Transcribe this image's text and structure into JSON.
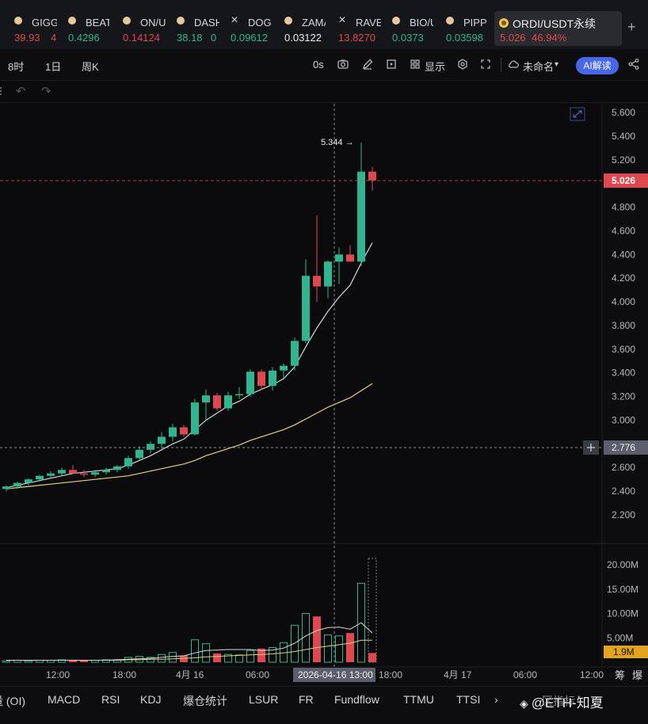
{
  "ticker": [
    {
      "sym": "GIGG",
      "price": "39.93",
      "extra": "4",
      "color": "red",
      "icon": "coin"
    },
    {
      "sym": "BEAT",
      "price": "0.4296",
      "color": "grn",
      "icon": "coin"
    },
    {
      "sym": "ON/U",
      "price": "0.14124",
      "color": "red",
      "icon": "coin"
    },
    {
      "sym": "DASH",
      "price": "38.18",
      "extra": "0",
      "color": "grn",
      "icon": "coin"
    },
    {
      "sym": "DOG",
      "price": "0.09612",
      "color": "grn",
      "icon": "x"
    },
    {
      "sym": "ZAMA",
      "price": "0.03122",
      "color": "wht",
      "icon": "coin"
    },
    {
      "sym": "RAVE",
      "price": "13.8270",
      "color": "red",
      "icon": "x"
    },
    {
      "sym": "BIO/U",
      "price": "0.0373",
      "color": "grn",
      "icon": "coin"
    },
    {
      "sym": "PIPPI",
      "price": "0.03598",
      "color": "grn",
      "icon": "coin"
    }
  ],
  "active_tab": {
    "pair": "ORDI/USDT永续",
    "price": "5.026",
    "change": "46.94%"
  },
  "toolbar": {
    "intervals": [
      "8时",
      "1日",
      "周K"
    ],
    "countdown": "0s",
    "display": "显示",
    "layout_name": "未命名",
    "ai_button": "AI解读"
  },
  "price_axis": [
    "5.600",
    "5.400",
    "5.200",
    "4.800",
    "4.600",
    "4.400",
    "4.200",
    "4.000",
    "3.800",
    "3.600",
    "3.400",
    "3.200",
    "3.000",
    "2.600",
    "2.400",
    "2.200"
  ],
  "last_price_label": "5.026",
  "crosshair_price_label": "2.776",
  "high_annotation": "5.344 →",
  "volume_axis": [
    "20.00M",
    "15.00M",
    "10.00M",
    "5.00M"
  ],
  "volume_last_label": "1.9M",
  "time_axis": [
    "12:00",
    "18:00",
    "4月 16",
    "06:00",
    "18:00",
    "4月 17",
    "06:00",
    "12:00"
  ],
  "crosshair_time_label": "2026-04-16 13:00",
  "time_axis_right": [
    "筹",
    "爆"
  ],
  "indicators": [
    "量 (OI)",
    "MACD",
    "RSI",
    "KDJ",
    "爆仓统计",
    "LSUR",
    "FR",
    "Fundflow",
    "TTMU",
    "TTSI"
  ],
  "indicator_more": "区指标",
  "watermark": "@ETH-知夏",
  "colors": {
    "up": "#2fb58f",
    "down": "#e04850",
    "ma_fast": "#d8d8d8",
    "ma_slow": "#e6d27a",
    "accent": "#4866e8"
  },
  "chart_data": {
    "type": "candlestick",
    "price_axis_range": [
      2.2,
      5.6
    ],
    "candles": [
      {
        "o": 2.42,
        "h": 2.45,
        "l": 2.4,
        "c": 2.44
      },
      {
        "o": 2.44,
        "h": 2.48,
        "l": 2.42,
        "c": 2.47
      },
      {
        "o": 2.47,
        "h": 2.51,
        "l": 2.45,
        "c": 2.5
      },
      {
        "o": 2.5,
        "h": 2.54,
        "l": 2.48,
        "c": 2.53
      },
      {
        "o": 2.53,
        "h": 2.57,
        "l": 2.51,
        "c": 2.55
      },
      {
        "o": 2.55,
        "h": 2.6,
        "l": 2.53,
        "c": 2.58
      },
      {
        "o": 2.58,
        "h": 2.62,
        "l": 2.55,
        "c": 2.55
      },
      {
        "o": 2.55,
        "h": 2.58,
        "l": 2.52,
        "c": 2.54
      },
      {
        "o": 2.54,
        "h": 2.58,
        "l": 2.52,
        "c": 2.56
      },
      {
        "o": 2.56,
        "h": 2.6,
        "l": 2.54,
        "c": 2.58
      },
      {
        "o": 2.58,
        "h": 2.62,
        "l": 2.56,
        "c": 2.61
      },
      {
        "o": 2.61,
        "h": 2.7,
        "l": 2.59,
        "c": 2.68
      },
      {
        "o": 2.68,
        "h": 2.78,
        "l": 2.66,
        "c": 2.75
      },
      {
        "o": 2.75,
        "h": 2.82,
        "l": 2.72,
        "c": 2.8
      },
      {
        "o": 2.8,
        "h": 2.9,
        "l": 2.76,
        "c": 2.86
      },
      {
        "o": 2.86,
        "h": 2.97,
        "l": 2.82,
        "c": 2.94
      },
      {
        "o": 2.94,
        "h": 2.96,
        "l": 2.86,
        "c": 2.88
      },
      {
        "o": 2.88,
        "h": 3.18,
        "l": 2.87,
        "c": 3.15
      },
      {
        "o": 3.15,
        "h": 3.26,
        "l": 3.0,
        "c": 3.21
      },
      {
        "o": 3.21,
        "h": 3.23,
        "l": 3.08,
        "c": 3.1
      },
      {
        "o": 3.1,
        "h": 3.24,
        "l": 3.08,
        "c": 3.21
      },
      {
        "o": 3.21,
        "h": 3.28,
        "l": 3.18,
        "c": 3.22
      },
      {
        "o": 3.22,
        "h": 3.43,
        "l": 3.2,
        "c": 3.41
      },
      {
        "o": 3.41,
        "h": 3.43,
        "l": 3.26,
        "c": 3.29
      },
      {
        "o": 3.29,
        "h": 3.45,
        "l": 3.25,
        "c": 3.42
      },
      {
        "o": 3.42,
        "h": 3.48,
        "l": 3.35,
        "c": 3.46
      },
      {
        "o": 3.46,
        "h": 3.7,
        "l": 3.42,
        "c": 3.67
      },
      {
        "o": 3.67,
        "h": 4.36,
        "l": 3.65,
        "c": 4.22
      },
      {
        "o": 4.22,
        "h": 4.73,
        "l": 4.0,
        "c": 4.13
      },
      {
        "o": 4.13,
        "h": 4.35,
        "l": 4.03,
        "c": 4.34
      },
      {
        "o": 4.34,
        "h": 4.46,
        "l": 4.15,
        "c": 4.4
      },
      {
        "o": 4.4,
        "h": 4.48,
        "l": 4.34,
        "c": 4.34
      },
      {
        "o": 4.34,
        "h": 5.344,
        "l": 4.3,
        "c": 5.1
      },
      {
        "o": 5.1,
        "h": 5.14,
        "l": 4.94,
        "c": 5.026
      }
    ],
    "ma_fast": [
      2.43,
      2.45,
      2.47,
      2.49,
      2.51,
      2.53,
      2.55,
      2.56,
      2.57,
      2.58,
      2.59,
      2.62,
      2.66,
      2.7,
      2.75,
      2.8,
      2.84,
      2.92,
      3.0,
      3.06,
      3.12,
      3.16,
      3.22,
      3.26,
      3.3,
      3.35,
      3.45,
      3.62,
      3.78,
      3.92,
      4.04,
      4.14,
      4.33,
      4.5
    ],
    "ma_slow": [
      2.42,
      2.43,
      2.44,
      2.45,
      2.46,
      2.47,
      2.48,
      2.49,
      2.5,
      2.51,
      2.52,
      2.53,
      2.55,
      2.57,
      2.59,
      2.61,
      2.63,
      2.66,
      2.7,
      2.73,
      2.76,
      2.79,
      2.83,
      2.86,
      2.89,
      2.92,
      2.96,
      3.01,
      3.06,
      3.11,
      3.15,
      3.19,
      3.25,
      3.31
    ],
    "volume_axis_range": [
      0,
      22
    ],
    "volumes": [
      0.3,
      0.4,
      0.3,
      0.4,
      0.4,
      0.5,
      0.4,
      0.4,
      0.4,
      0.5,
      0.5,
      1.0,
      1.2,
      1.0,
      1.6,
      2.0,
      1.4,
      4.6,
      3.8,
      1.8,
      1.6,
      1.5,
      2.4,
      2.8,
      3.0,
      4.0,
      7.6,
      10.0,
      9.4,
      5.6,
      5.4,
      6.0,
      16.2,
      1.9
    ],
    "volume_ma_fast": [
      0.4,
      0.4,
      0.4,
      0.4,
      0.4,
      0.4,
      0.4,
      0.4,
      0.4,
      0.4,
      0.5,
      0.6,
      0.7,
      0.8,
      1.0,
      1.2,
      1.3,
      1.9,
      2.4,
      2.5,
      2.6,
      2.6,
      2.6,
      2.4,
      2.5,
      2.9,
      3.9,
      5.4,
      6.5,
      7.1,
      7.2,
      6.8,
      8.1,
      6.0
    ],
    "volume_ma_slow": [
      0.4,
      0.4,
      0.4,
      0.4,
      0.4,
      0.4,
      0.4,
      0.4,
      0.4,
      0.4,
      0.4,
      0.5,
      0.5,
      0.6,
      0.6,
      0.7,
      0.8,
      0.9,
      1.1,
      1.2,
      1.3,
      1.4,
      1.5,
      1.6,
      1.7,
      1.9,
      2.2,
      2.6,
      3.0,
      3.3,
      3.6,
      3.9,
      4.5,
      4.5
    ]
  }
}
